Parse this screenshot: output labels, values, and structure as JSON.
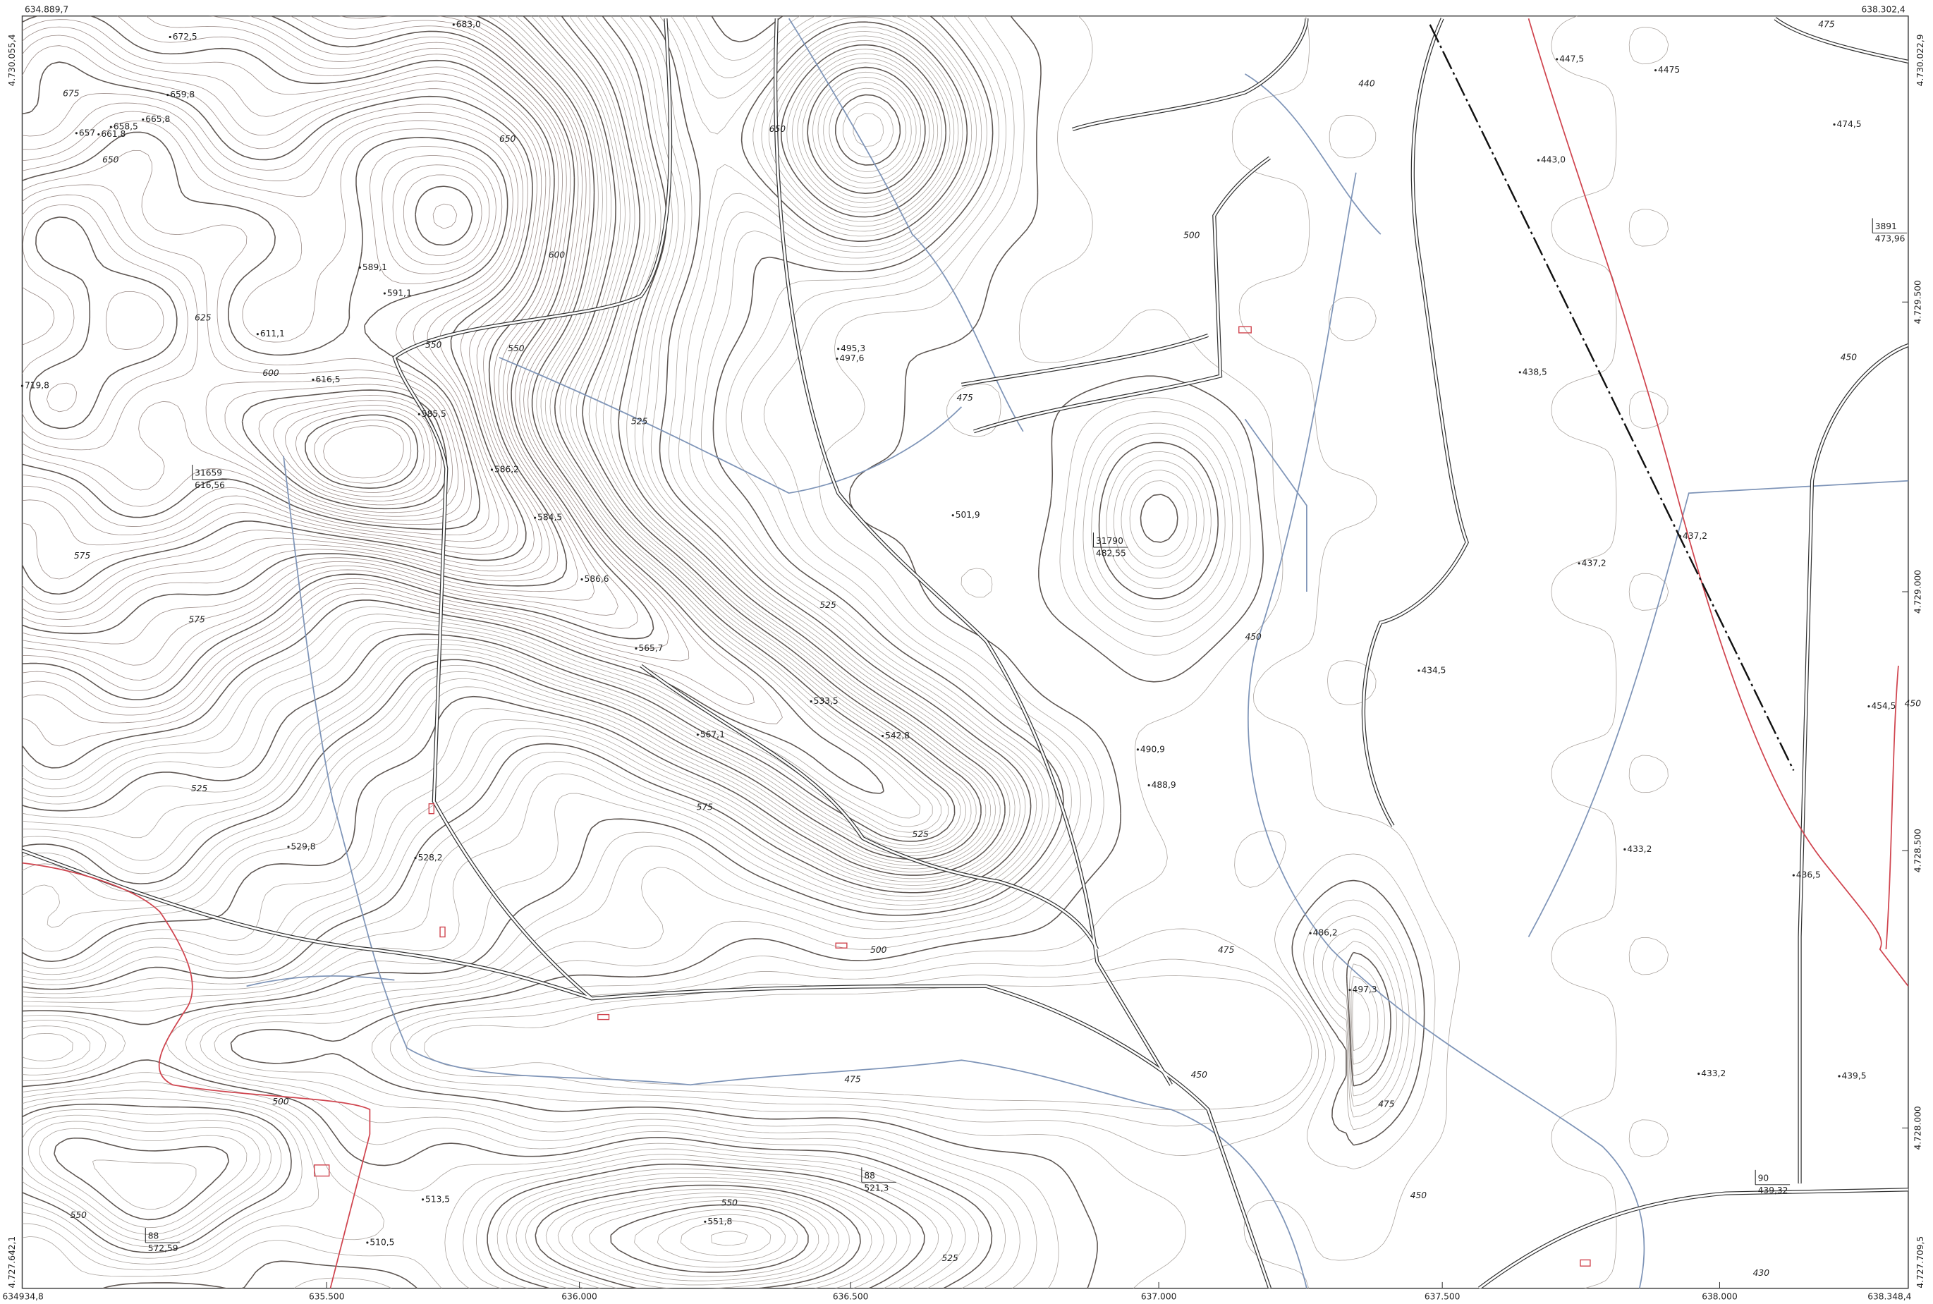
{
  "frame": {
    "top_left": "634.889,7",
    "top_right": "638.302,4",
    "bottom_left": "634934,8",
    "bottom_right": "638.348,4",
    "left_top": "4.730.055,4",
    "right_top": "4.730.022,9",
    "left_bottom": "4.727.642,1",
    "right_bottom": "4.727.709,5"
  },
  "easting_labels": [
    "635.500",
    "636.000",
    "636.500",
    "637.000",
    "637.500",
    "638.000"
  ],
  "northing_labels": [
    "4.729.500",
    "4.729.000",
    "4.728.500",
    "4.728.000"
  ],
  "spot_heights": [
    "672,5",
    "683,0",
    "659,8",
    "665,8",
    "658,5",
    "657",
    "661,8",
    "589,1",
    "591,1",
    "611,1",
    "616,5",
    "719,8",
    "585,5",
    "586,2",
    "584,5",
    "586,6",
    "495,3",
    "497,6",
    "501,9",
    "565,7",
    "533,5",
    "567,1",
    "542,8",
    "490,9",
    "488,9",
    "529,8",
    "528,2",
    "486,2",
    "497,3",
    "513,5",
    "510,5",
    "551,8",
    "447,5",
    "4475",
    "474,5",
    "443,0",
    "438,5",
    "437,2",
    "437,2",
    "434,5",
    "454,5",
    "433,2",
    "436,5",
    "433,2",
    "439,5"
  ],
  "benchmarks": [
    {
      "id": "31659",
      "elevation": "616,56"
    },
    {
      "id": "31790",
      "elevation": "482,55"
    },
    {
      "id": "3891",
      "elevation": "473,96"
    },
    {
      "id": "88",
      "elevation": "521,3"
    },
    {
      "id": "88",
      "elevation": "572,59"
    },
    {
      "id": "90",
      "elevation": "439,32"
    }
  ],
  "contour_labels": [
    "675",
    "650",
    "650",
    "650",
    "600",
    "625",
    "600",
    "575",
    "575",
    "525",
    "550",
    "550",
    "525",
    "500",
    "475",
    "525",
    "575",
    "525",
    "500",
    "475",
    "450",
    "475",
    "475",
    "450",
    "500",
    "525",
    "550",
    "550",
    "440",
    "450",
    "450",
    "430",
    "475",
    "450"
  ]
}
